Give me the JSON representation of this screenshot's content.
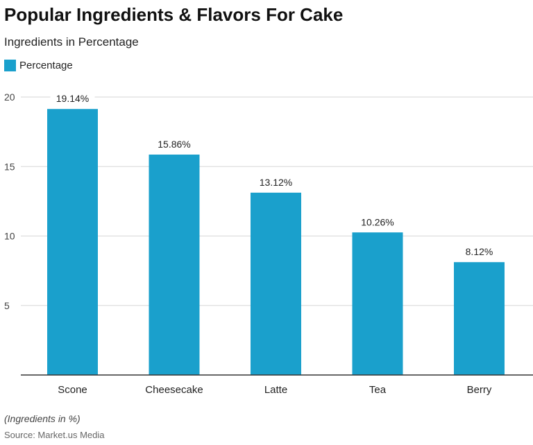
{
  "title": "Popular Ingredients & Flavors For Cake",
  "subtitle": "Ingredients in Percentage",
  "note": "(Ingredients in %)",
  "source": "Source: Market.us Media",
  "chart_data": {
    "type": "bar",
    "categories": [
      "Scone",
      "Cheesecake",
      "Latte",
      "Tea",
      "Berry"
    ],
    "series": [
      {
        "name": "Percentage",
        "values": [
          19.14,
          15.86,
          13.12,
          10.26,
          8.12
        ],
        "color": "#1aa0cc"
      }
    ],
    "data_labels": [
      "19.14%",
      "15.86%",
      "13.12%",
      "10.26%",
      "8.12%"
    ],
    "yticks": [
      5,
      10,
      15,
      20
    ],
    "ylim": [
      0,
      20
    ],
    "grid": true,
    "legend": "top-left"
  }
}
